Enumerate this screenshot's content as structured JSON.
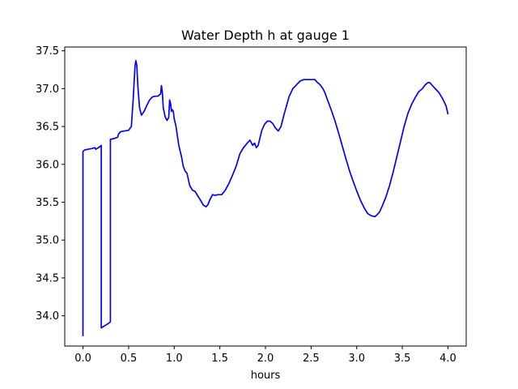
{
  "chart_data": {
    "type": "line",
    "title": "Water Depth h at gauge 1",
    "xlabel": "hours",
    "ylabel": "",
    "xlim": [
      -0.2,
      4.2
    ],
    "ylim": [
      33.6,
      37.55
    ],
    "grid": false,
    "x_ticks": [
      0.0,
      0.5,
      1.0,
      1.5,
      2.0,
      2.5,
      3.0,
      3.5,
      4.0
    ],
    "x_tick_labels": [
      "0.0",
      "0.5",
      "1.0",
      "1.5",
      "2.0",
      "2.5",
      "3.0",
      "3.5",
      "4.0"
    ],
    "y_ticks": [
      34.0,
      34.5,
      35.0,
      35.5,
      36.0,
      36.5,
      37.0,
      37.5
    ],
    "y_tick_labels": [
      "34.0",
      "34.5",
      "35.0",
      "35.5",
      "36.0",
      "36.5",
      "37.0",
      "37.5"
    ],
    "series": [
      {
        "color": "#0000ff",
        "x": [
          0.0,
          0.0,
          0.02,
          0.06,
          0.1,
          0.13,
          0.14,
          0.17,
          0.19,
          0.2,
          0.2,
          0.24,
          0.28,
          0.3,
          0.3,
          0.34,
          0.38,
          0.39,
          0.41,
          0.45,
          0.5,
          0.53,
          0.55,
          0.57,
          0.58,
          0.59,
          0.6,
          0.62,
          0.64,
          0.67,
          0.7,
          0.73,
          0.76,
          0.79,
          0.82,
          0.85,
          0.86,
          0.87,
          0.88,
          0.9,
          0.92,
          0.94,
          0.95,
          0.96,
          0.97,
          0.98,
          0.99,
          1.0,
          1.02,
          1.04,
          1.05,
          1.06,
          1.08,
          1.1,
          1.12,
          1.14,
          1.17,
          1.2,
          1.23,
          1.26,
          1.29,
          1.32,
          1.35,
          1.37,
          1.39,
          1.42,
          1.45,
          1.48,
          1.52,
          1.56,
          1.6,
          1.64,
          1.68,
          1.72,
          1.76,
          1.8,
          1.83,
          1.86,
          1.88,
          1.9,
          1.92,
          1.94,
          1.96,
          1.99,
          2.02,
          2.05,
          2.08,
          2.11,
          2.14,
          2.17,
          2.2,
          2.23,
          2.26,
          2.3,
          2.34,
          2.38,
          2.42,
          2.46,
          2.5,
          2.54,
          2.57,
          2.6,
          2.63,
          2.65,
          2.68,
          2.72,
          2.76,
          2.8,
          2.84,
          2.88,
          2.92,
          2.96,
          3.0,
          3.04,
          3.08,
          3.12,
          3.16,
          3.2,
          3.22,
          3.25,
          3.28,
          3.32,
          3.36,
          3.4,
          3.44,
          3.48,
          3.52,
          3.56,
          3.6,
          3.64,
          3.68,
          3.72,
          3.75,
          3.78,
          3.8,
          3.83,
          3.86,
          3.9,
          3.94,
          3.98,
          4.0
        ],
        "y": [
          33.73,
          36.17,
          36.19,
          36.2,
          36.21,
          36.22,
          36.2,
          36.22,
          36.24,
          36.25,
          33.84,
          33.87,
          33.9,
          33.92,
          36.33,
          36.34,
          36.36,
          36.4,
          36.43,
          36.44,
          36.45,
          36.5,
          36.85,
          37.3,
          37.37,
          37.3,
          37.05,
          36.75,
          36.65,
          36.7,
          36.78,
          36.85,
          36.89,
          36.9,
          36.9,
          36.93,
          37.04,
          36.95,
          36.75,
          36.63,
          36.58,
          36.62,
          36.85,
          36.8,
          36.7,
          36.72,
          36.7,
          36.6,
          36.5,
          36.33,
          36.25,
          36.2,
          36.1,
          35.97,
          35.91,
          35.88,
          35.72,
          35.66,
          35.64,
          35.58,
          35.52,
          35.46,
          35.44,
          35.47,
          35.53,
          35.6,
          35.59,
          35.6,
          35.6,
          35.66,
          35.75,
          35.86,
          35.98,
          36.14,
          36.22,
          36.28,
          36.32,
          36.25,
          36.28,
          36.22,
          36.25,
          36.35,
          36.45,
          36.53,
          36.57,
          36.57,
          36.54,
          36.48,
          36.44,
          36.5,
          36.64,
          36.77,
          36.9,
          37.0,
          37.05,
          37.1,
          37.12,
          37.12,
          37.12,
          37.12,
          37.08,
          37.05,
          37.0,
          36.95,
          36.85,
          36.72,
          36.58,
          36.42,
          36.25,
          36.08,
          35.92,
          35.78,
          35.65,
          35.53,
          35.43,
          35.35,
          35.32,
          35.31,
          35.33,
          35.37,
          35.45,
          35.57,
          35.72,
          35.9,
          36.1,
          36.3,
          36.5,
          36.67,
          36.79,
          36.88,
          36.96,
          37.0,
          37.05,
          37.08,
          37.08,
          37.04,
          37.0,
          36.95,
          36.87,
          36.77,
          36.66
        ]
      }
    ]
  }
}
